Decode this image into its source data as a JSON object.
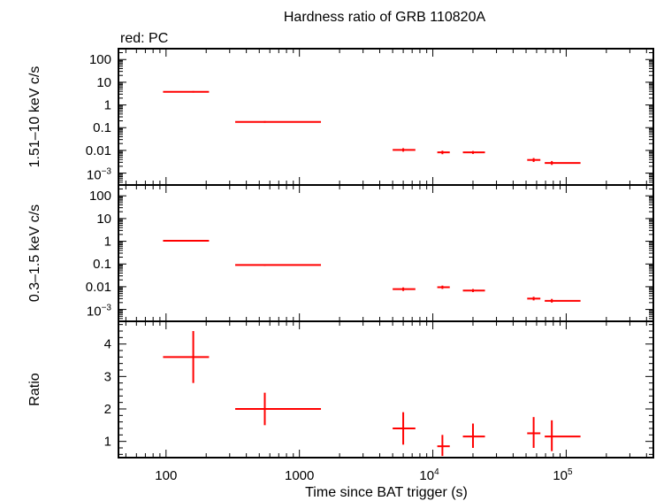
{
  "title": "Hardness ratio of GRB 110820A",
  "legend": "red: PC",
  "colors": {
    "data": "#ff0000",
    "axes": "#000000"
  },
  "chart_data": {
    "type": "scatter",
    "xscale": "log",
    "xlabel": "Time since BAT trigger (s)",
    "xlim": [
      44,
      450000
    ],
    "x_ticks": [
      {
        "value": 100,
        "label": "100"
      },
      {
        "value": 1000,
        "label": "1000"
      },
      {
        "value": 10000,
        "base": "10",
        "exp": "4"
      },
      {
        "value": 100000,
        "base": "10",
        "exp": "5"
      }
    ],
    "panels": [
      {
        "id": "hard",
        "ylabel": "1.51–10 keV c/s",
        "yscale": "log",
        "ylim": [
          0.0003,
          300
        ],
        "y_ticks": [
          {
            "value": 100,
            "label": "100"
          },
          {
            "value": 10,
            "label": "10"
          },
          {
            "value": 1,
            "label": "1"
          },
          {
            "value": 0.1,
            "label": "0.1"
          },
          {
            "value": 0.01,
            "label": "0.01"
          },
          {
            "value": 0.001,
            "base": "10",
            "exp": "−3"
          }
        ],
        "points": [
          {
            "x": 160,
            "xlo": 95,
            "xhi": 210,
            "y": 3.8,
            "ylo": 3.5,
            "yhi": 4.1
          },
          {
            "x": 550,
            "xlo": 330,
            "xhi": 1450,
            "y": 0.18,
            "ylo": 0.165,
            "yhi": 0.195
          },
          {
            "x": 6000,
            "xlo": 5000,
            "xhi": 7400,
            "y": 0.0105,
            "ylo": 0.0088,
            "yhi": 0.0125
          },
          {
            "x": 11800,
            "xlo": 10800,
            "xhi": 13400,
            "y": 0.0082,
            "ylo": 0.0068,
            "yhi": 0.0097
          },
          {
            "x": 20000,
            "xlo": 16800,
            "xhi": 24600,
            "y": 0.0082,
            "ylo": 0.007,
            "yhi": 0.0094
          },
          {
            "x": 57000,
            "xlo": 51000,
            "xhi": 64000,
            "y": 0.0038,
            "ylo": 0.0031,
            "yhi": 0.0046
          },
          {
            "x": 78000,
            "xlo": 69000,
            "xhi": 128000,
            "y": 0.0028,
            "ylo": 0.0023,
            "yhi": 0.0034
          }
        ]
      },
      {
        "id": "soft",
        "ylabel": "0.3–1.5 keV c/s",
        "yscale": "log",
        "ylim": [
          0.0003,
          300
        ],
        "y_ticks": [
          {
            "value": 100,
            "label": "100"
          },
          {
            "value": 10,
            "label": "10"
          },
          {
            "value": 1,
            "label": "1"
          },
          {
            "value": 0.1,
            "label": "0.1"
          },
          {
            "value": 0.01,
            "label": "0.01"
          },
          {
            "value": 0.001,
            "base": "10",
            "exp": "−3"
          }
        ],
        "points": [
          {
            "x": 160,
            "xlo": 95,
            "xhi": 210,
            "y": 1.05,
            "ylo": 0.97,
            "yhi": 1.13
          },
          {
            "x": 550,
            "xlo": 330,
            "xhi": 1450,
            "y": 0.09,
            "ylo": 0.083,
            "yhi": 0.097
          },
          {
            "x": 6000,
            "xlo": 5000,
            "xhi": 7400,
            "y": 0.0078,
            "ylo": 0.0065,
            "yhi": 0.0093
          },
          {
            "x": 11800,
            "xlo": 10800,
            "xhi": 13400,
            "y": 0.0095,
            "ylo": 0.008,
            "yhi": 0.0112
          },
          {
            "x": 20000,
            "xlo": 16800,
            "xhi": 24600,
            "y": 0.0068,
            "ylo": 0.0058,
            "yhi": 0.0079
          },
          {
            "x": 57000,
            "xlo": 51000,
            "xhi": 64000,
            "y": 0.003,
            "ylo": 0.0025,
            "yhi": 0.0036
          },
          {
            "x": 78000,
            "xlo": 69000,
            "xhi": 128000,
            "y": 0.0024,
            "ylo": 0.002,
            "yhi": 0.0029
          }
        ]
      },
      {
        "id": "ratio",
        "ylabel": "Ratio",
        "yscale": "linear",
        "ylim": [
          0.5,
          4.7
        ],
        "y_ticks": [
          {
            "value": 1,
            "label": "1"
          },
          {
            "value": 2,
            "label": "2"
          },
          {
            "value": 3,
            "label": "3"
          },
          {
            "value": 4,
            "label": "4"
          }
        ],
        "points": [
          {
            "x": 160,
            "xlo": 95,
            "xhi": 210,
            "y": 3.6,
            "ylo": 2.8,
            "yhi": 4.4
          },
          {
            "x": 550,
            "xlo": 330,
            "xhi": 1450,
            "y": 2.0,
            "ylo": 1.5,
            "yhi": 2.5
          },
          {
            "x": 6000,
            "xlo": 5000,
            "xhi": 7400,
            "y": 1.4,
            "ylo": 0.9,
            "yhi": 1.9
          },
          {
            "x": 11800,
            "xlo": 10800,
            "xhi": 13400,
            "y": 0.85,
            "ylo": 0.55,
            "yhi": 1.2
          },
          {
            "x": 20000,
            "xlo": 16800,
            "xhi": 24600,
            "y": 1.15,
            "ylo": 0.8,
            "yhi": 1.55
          },
          {
            "x": 57000,
            "xlo": 51000,
            "xhi": 64000,
            "y": 1.25,
            "ylo": 0.8,
            "yhi": 1.75
          },
          {
            "x": 78000,
            "xlo": 69000,
            "xhi": 128000,
            "y": 1.15,
            "ylo": 0.7,
            "yhi": 1.65
          }
        ]
      }
    ]
  }
}
